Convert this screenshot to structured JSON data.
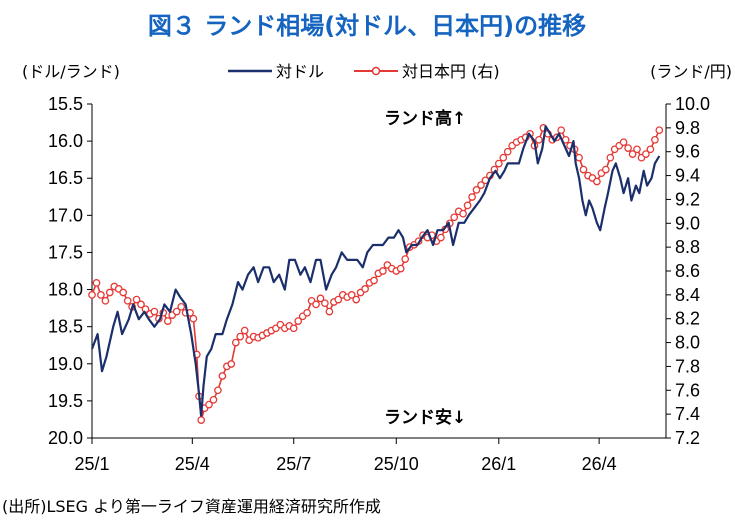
{
  "chart_data": {
    "type": "line",
    "title": "図３ ランド相場(対ドル、日本円)の推移",
    "left_unit": "(ドル/ランド)",
    "right_unit": "(ランド/円)",
    "source_note": "(出所)LSEG より第一ライフ資産運用経済研究所作成",
    "annotations": {
      "up": "ランド高↑",
      "down": "ランド安↓"
    },
    "x_ticks": [
      "25/1",
      "25/4",
      "25/7",
      "25/10",
      "26/1",
      "26/4"
    ],
    "x_range": [
      "2025-01",
      "2026-05"
    ],
    "y_left": {
      "ticks": [
        "15.5",
        "16.0",
        "16.5",
        "17.0",
        "17.5",
        "18.0",
        "18.5",
        "19.0",
        "19.5",
        "20.0"
      ],
      "range": [
        15.5,
        20.0
      ],
      "inverted": true
    },
    "y_right": {
      "ticks": [
        "10.0",
        "9.8",
        "9.6",
        "9.4",
        "9.2",
        "9.0",
        "8.8",
        "8.6",
        "8.4",
        "8.2",
        "8.0",
        "7.8",
        "7.6",
        "7.4",
        "7.2"
      ],
      "range": [
        7.2,
        10.0
      ]
    },
    "grid": false,
    "legend": {
      "position": "top",
      "entries": [
        "対ドル",
        "対日本円 (右)"
      ]
    },
    "series": [
      {
        "name": "対ドル",
        "axis": "left",
        "color": "#1a2f6b",
        "points": [
          [
            "2025-01-01",
            18.8
          ],
          [
            "2025-01-06",
            18.6
          ],
          [
            "2025-01-10",
            19.1
          ],
          [
            "2025-01-14",
            18.9
          ],
          [
            "2025-01-20",
            18.5
          ],
          [
            "2025-01-24",
            18.3
          ],
          [
            "2025-01-28",
            18.6
          ],
          [
            "2025-02-03",
            18.4
          ],
          [
            "2025-02-07",
            18.2
          ],
          [
            "2025-02-12",
            18.4
          ],
          [
            "2025-02-17",
            18.3
          ],
          [
            "2025-02-21",
            18.4
          ],
          [
            "2025-02-26",
            18.5
          ],
          [
            "2025-03-03",
            18.4
          ],
          [
            "2025-03-07",
            18.2
          ],
          [
            "2025-03-12",
            18.3
          ],
          [
            "2025-03-17",
            18.0
          ],
          [
            "2025-03-21",
            18.1
          ],
          [
            "2025-03-26",
            18.2
          ],
          [
            "2025-03-31",
            18.6
          ],
          [
            "2025-04-04",
            19.0
          ],
          [
            "2025-04-07",
            19.4
          ],
          [
            "2025-04-09",
            19.7
          ],
          [
            "2025-04-11",
            19.3
          ],
          [
            "2025-04-14",
            18.9
          ],
          [
            "2025-04-18",
            18.8
          ],
          [
            "2025-04-22",
            18.6
          ],
          [
            "2025-04-28",
            18.6
          ],
          [
            "2025-05-02",
            18.4
          ],
          [
            "2025-05-07",
            18.2
          ],
          [
            "2025-05-12",
            17.9
          ],
          [
            "2025-05-16",
            18.0
          ],
          [
            "2025-05-21",
            17.8
          ],
          [
            "2025-05-26",
            17.7
          ],
          [
            "2025-05-30",
            17.9
          ],
          [
            "2025-06-04",
            17.7
          ],
          [
            "2025-06-09",
            17.7
          ],
          [
            "2025-06-13",
            17.9
          ],
          [
            "2025-06-18",
            17.8
          ],
          [
            "2025-06-23",
            18.0
          ],
          [
            "2025-06-27",
            17.6
          ],
          [
            "2025-07-02",
            17.6
          ],
          [
            "2025-07-07",
            17.8
          ],
          [
            "2025-07-11",
            17.7
          ],
          [
            "2025-07-16",
            17.9
          ],
          [
            "2025-07-21",
            17.6
          ],
          [
            "2025-07-25",
            17.6
          ],
          [
            "2025-07-30",
            18.0
          ],
          [
            "2025-08-04",
            17.8
          ],
          [
            "2025-08-08",
            17.7
          ],
          [
            "2025-08-13",
            17.5
          ],
          [
            "2025-08-18",
            17.6
          ],
          [
            "2025-08-22",
            17.6
          ],
          [
            "2025-08-27",
            17.6
          ],
          [
            "2025-09-01",
            17.7
          ],
          [
            "2025-09-05",
            17.5
          ],
          [
            "2025-09-10",
            17.4
          ],
          [
            "2025-09-15",
            17.4
          ],
          [
            "2025-09-19",
            17.4
          ],
          [
            "2025-09-24",
            17.3
          ],
          [
            "2025-09-29",
            17.3
          ],
          [
            "2025-10-03",
            17.2
          ],
          [
            "2025-10-07",
            17.3
          ],
          [
            "2025-10-10",
            17.5
          ],
          [
            "2025-10-15",
            17.4
          ],
          [
            "2025-10-20",
            17.4
          ],
          [
            "2025-10-24",
            17.3
          ],
          [
            "2025-10-29",
            17.2
          ],
          [
            "2025-11-03",
            17.4
          ],
          [
            "2025-11-07",
            17.2
          ],
          [
            "2025-11-12",
            17.2
          ],
          [
            "2025-11-17",
            17.1
          ],
          [
            "2025-11-21",
            17.4
          ],
          [
            "2025-11-26",
            17.1
          ],
          [
            "2025-12-01",
            17.1
          ],
          [
            "2025-12-05",
            17.0
          ],
          [
            "2025-12-10",
            16.9
          ],
          [
            "2025-12-15",
            16.8
          ],
          [
            "2025-12-19",
            16.7
          ],
          [
            "2025-12-24",
            16.5
          ],
          [
            "2025-12-29",
            16.4
          ],
          [
            "2026-01-02",
            16.5
          ],
          [
            "2026-01-06",
            16.4
          ],
          [
            "2026-01-09",
            16.3
          ],
          [
            "2026-01-14",
            16.3
          ],
          [
            "2026-01-19",
            16.3
          ],
          [
            "2026-01-23",
            16.1
          ],
          [
            "2026-01-28",
            15.9
          ],
          [
            "2026-02-02",
            16.0
          ],
          [
            "2026-02-05",
            16.3
          ],
          [
            "2026-02-09",
            16.1
          ],
          [
            "2026-02-12",
            15.8
          ],
          [
            "2026-02-16",
            15.9
          ],
          [
            "2026-02-20",
            16.0
          ],
          [
            "2026-02-24",
            15.9
          ],
          [
            "2026-03-02",
            16.1
          ],
          [
            "2026-03-05",
            16.2
          ],
          [
            "2026-03-09",
            16.0
          ],
          [
            "2026-03-11",
            16.3
          ],
          [
            "2026-03-14",
            16.5
          ],
          [
            "2026-03-17",
            16.8
          ],
          [
            "2026-03-20",
            17.0
          ],
          [
            "2026-03-23",
            16.8
          ],
          [
            "2026-03-26",
            16.9
          ],
          [
            "2026-03-30",
            17.1
          ],
          [
            "2026-04-02",
            17.2
          ],
          [
            "2026-04-06",
            16.9
          ],
          [
            "2026-04-09",
            16.7
          ],
          [
            "2026-04-13",
            16.4
          ],
          [
            "2026-04-16",
            16.3
          ],
          [
            "2026-04-20",
            16.5
          ],
          [
            "2026-04-23",
            16.7
          ],
          [
            "2026-04-27",
            16.5
          ],
          [
            "2026-04-30",
            16.8
          ],
          [
            "2026-05-04",
            16.6
          ],
          [
            "2026-05-07",
            16.7
          ],
          [
            "2026-05-11",
            16.4
          ],
          [
            "2026-05-14",
            16.6
          ],
          [
            "2026-05-18",
            16.5
          ],
          [
            "2026-05-21",
            16.3
          ],
          [
            "2026-05-25",
            16.2
          ]
        ]
      },
      {
        "name": "対日本円 (右)",
        "axis": "right",
        "color": "#e53935",
        "points": [
          [
            "2025-01-01",
            8.4
          ],
          [
            "2025-01-05",
            8.5
          ],
          [
            "2025-01-09",
            8.4
          ],
          [
            "2025-01-13",
            8.35
          ],
          [
            "2025-01-17",
            8.42
          ],
          [
            "2025-01-21",
            8.47
          ],
          [
            "2025-01-25",
            8.45
          ],
          [
            "2025-01-29",
            8.42
          ],
          [
            "2025-02-02",
            8.35
          ],
          [
            "2025-02-06",
            8.3
          ],
          [
            "2025-02-10",
            8.36
          ],
          [
            "2025-02-14",
            8.32
          ],
          [
            "2025-02-18",
            8.28
          ],
          [
            "2025-02-22",
            8.24
          ],
          [
            "2025-02-26",
            8.26
          ],
          [
            "2025-03-02",
            8.2
          ],
          [
            "2025-03-06",
            8.25
          ],
          [
            "2025-03-10",
            8.18
          ],
          [
            "2025-03-14",
            8.23
          ],
          [
            "2025-03-18",
            8.26
          ],
          [
            "2025-03-22",
            8.3
          ],
          [
            "2025-03-26",
            8.25
          ],
          [
            "2025-03-30",
            8.25
          ],
          [
            "2025-04-02",
            8.2
          ],
          [
            "2025-04-05",
            7.9
          ],
          [
            "2025-04-07",
            7.55
          ],
          [
            "2025-04-09",
            7.35
          ],
          [
            "2025-04-12",
            7.45
          ],
          [
            "2025-04-16",
            7.48
          ],
          [
            "2025-04-20",
            7.52
          ],
          [
            "2025-04-24",
            7.6
          ],
          [
            "2025-04-28",
            7.72
          ],
          [
            "2025-05-02",
            7.8
          ],
          [
            "2025-05-06",
            7.82
          ],
          [
            "2025-05-10",
            8.0
          ],
          [
            "2025-05-14",
            8.05
          ],
          [
            "2025-05-18",
            8.1
          ],
          [
            "2025-05-22",
            8.02
          ],
          [
            "2025-05-26",
            8.05
          ],
          [
            "2025-05-30",
            8.04
          ],
          [
            "2025-06-03",
            8.06
          ],
          [
            "2025-06-07",
            8.08
          ],
          [
            "2025-06-11",
            8.1
          ],
          [
            "2025-06-15",
            8.12
          ],
          [
            "2025-06-19",
            8.15
          ],
          [
            "2025-06-23",
            8.12
          ],
          [
            "2025-06-27",
            8.14
          ],
          [
            "2025-07-01",
            8.12
          ],
          [
            "2025-07-05",
            8.18
          ],
          [
            "2025-07-09",
            8.22
          ],
          [
            "2025-07-13",
            8.25
          ],
          [
            "2025-07-17",
            8.35
          ],
          [
            "2025-07-21",
            8.32
          ],
          [
            "2025-07-25",
            8.37
          ],
          [
            "2025-07-29",
            8.33
          ],
          [
            "2025-08-02",
            8.26
          ],
          [
            "2025-08-06",
            8.34
          ],
          [
            "2025-08-10",
            8.36
          ],
          [
            "2025-08-14",
            8.4
          ],
          [
            "2025-08-18",
            8.38
          ],
          [
            "2025-08-22",
            8.4
          ],
          [
            "2025-08-26",
            8.36
          ],
          [
            "2025-08-30",
            8.42
          ],
          [
            "2025-09-03",
            8.45
          ],
          [
            "2025-09-07",
            8.5
          ],
          [
            "2025-09-11",
            8.52
          ],
          [
            "2025-09-15",
            8.58
          ],
          [
            "2025-09-19",
            8.6
          ],
          [
            "2025-09-23",
            8.65
          ],
          [
            "2025-09-27",
            8.62
          ],
          [
            "2025-10-01",
            8.6
          ],
          [
            "2025-10-05",
            8.62
          ],
          [
            "2025-10-09",
            8.7
          ],
          [
            "2025-10-13",
            8.8
          ],
          [
            "2025-10-17",
            8.82
          ],
          [
            "2025-10-21",
            8.85
          ],
          [
            "2025-10-25",
            8.9
          ],
          [
            "2025-10-29",
            8.88
          ],
          [
            "2025-11-02",
            8.9
          ],
          [
            "2025-11-06",
            8.85
          ],
          [
            "2025-11-10",
            8.88
          ],
          [
            "2025-11-14",
            8.95
          ],
          [
            "2025-11-18",
            9.0
          ],
          [
            "2025-11-22",
            9.05
          ],
          [
            "2025-11-26",
            9.1
          ],
          [
            "2025-11-30",
            9.08
          ],
          [
            "2025-12-04",
            9.15
          ],
          [
            "2025-12-08",
            9.22
          ],
          [
            "2025-12-12",
            9.28
          ],
          [
            "2025-12-16",
            9.32
          ],
          [
            "2025-12-20",
            9.36
          ],
          [
            "2025-12-24",
            9.4
          ],
          [
            "2025-12-28",
            9.45
          ],
          [
            "2026-01-01",
            9.5
          ],
          [
            "2026-01-05",
            9.55
          ],
          [
            "2026-01-09",
            9.6
          ],
          [
            "2026-01-13",
            9.65
          ],
          [
            "2026-01-17",
            9.68
          ],
          [
            "2026-01-21",
            9.7
          ],
          [
            "2026-01-25",
            9.72
          ],
          [
            "2026-01-29",
            9.75
          ],
          [
            "2026-02-02",
            9.65
          ],
          [
            "2026-02-06",
            9.7
          ],
          [
            "2026-02-10",
            9.8
          ],
          [
            "2026-02-14",
            9.75
          ],
          [
            "2026-02-18",
            9.7
          ],
          [
            "2026-02-22",
            9.72
          ],
          [
            "2026-02-26",
            9.78
          ],
          [
            "2026-03-02",
            9.7
          ],
          [
            "2026-03-06",
            9.65
          ],
          [
            "2026-03-10",
            9.62
          ],
          [
            "2026-03-14",
            9.55
          ],
          [
            "2026-03-18",
            9.45
          ],
          [
            "2026-03-22",
            9.4
          ],
          [
            "2026-03-26",
            9.38
          ],
          [
            "2026-03-30",
            9.35
          ],
          [
            "2026-04-03",
            9.42
          ],
          [
            "2026-04-07",
            9.45
          ],
          [
            "2026-04-11",
            9.55
          ],
          [
            "2026-04-15",
            9.62
          ],
          [
            "2026-04-19",
            9.65
          ],
          [
            "2026-04-23",
            9.68
          ],
          [
            "2026-04-27",
            9.63
          ],
          [
            "2026-05-01",
            9.58
          ],
          [
            "2026-05-05",
            9.62
          ],
          [
            "2026-05-09",
            9.55
          ],
          [
            "2026-05-13",
            9.58
          ],
          [
            "2026-05-17",
            9.62
          ],
          [
            "2026-05-21",
            9.7
          ],
          [
            "2026-05-25",
            9.78
          ]
        ]
      }
    ]
  }
}
